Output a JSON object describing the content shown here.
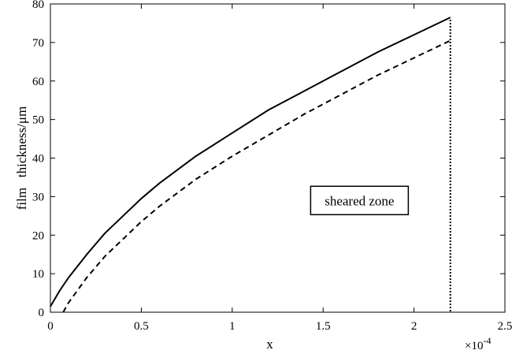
{
  "chart_data": {
    "type": "line",
    "title": "",
    "xlabel": "x",
    "ylabel": "film   thickness/μm",
    "x_exponent_label": "×10",
    "x_exponent_power": "-4",
    "xlim": [
      0,
      2.5
    ],
    "ylim": [
      0,
      80
    ],
    "x_ticks": [
      0,
      0.5,
      1,
      1.5,
      2,
      2.5
    ],
    "x_tick_labels": [
      "0",
      "0.5",
      "1",
      "1.5",
      "2",
      "2.5"
    ],
    "y_ticks": [
      0,
      10,
      20,
      30,
      40,
      50,
      60,
      70,
      80
    ],
    "y_tick_labels": [
      "0",
      "10",
      "20",
      "30",
      "40",
      "50",
      "60",
      "70",
      "80"
    ],
    "grid": false,
    "series": [
      {
        "style": "solid",
        "x": [
          0,
          0.05,
          0.1,
          0.2,
          0.3,
          0.4,
          0.5,
          0.6,
          0.8,
          1.0,
          1.2,
          1.4,
          1.6,
          1.8,
          2.0,
          2.2
        ],
        "y": [
          1.5,
          5.5,
          9,
          15,
          20.5,
          25,
          29.5,
          33.5,
          40.5,
          46.5,
          52.5,
          57.5,
          62.5,
          67.5,
          72,
          76.5
        ]
      },
      {
        "style": "dashed",
        "x": [
          0.07,
          0.1,
          0.2,
          0.3,
          0.4,
          0.5,
          0.6,
          0.8,
          1.0,
          1.2,
          1.4,
          1.6,
          1.8,
          2.0,
          2.2
        ],
        "y": [
          0,
          2.5,
          9,
          14.5,
          19,
          23.5,
          27.5,
          34.5,
          40.5,
          46,
          51.5,
          56.5,
          61.5,
          66,
          70.5
        ]
      }
    ],
    "vertical_line": {
      "x": 2.2,
      "style": "dotted"
    },
    "annotation": {
      "text": "sheared zone",
      "x": 1.7,
      "y": 29
    }
  }
}
